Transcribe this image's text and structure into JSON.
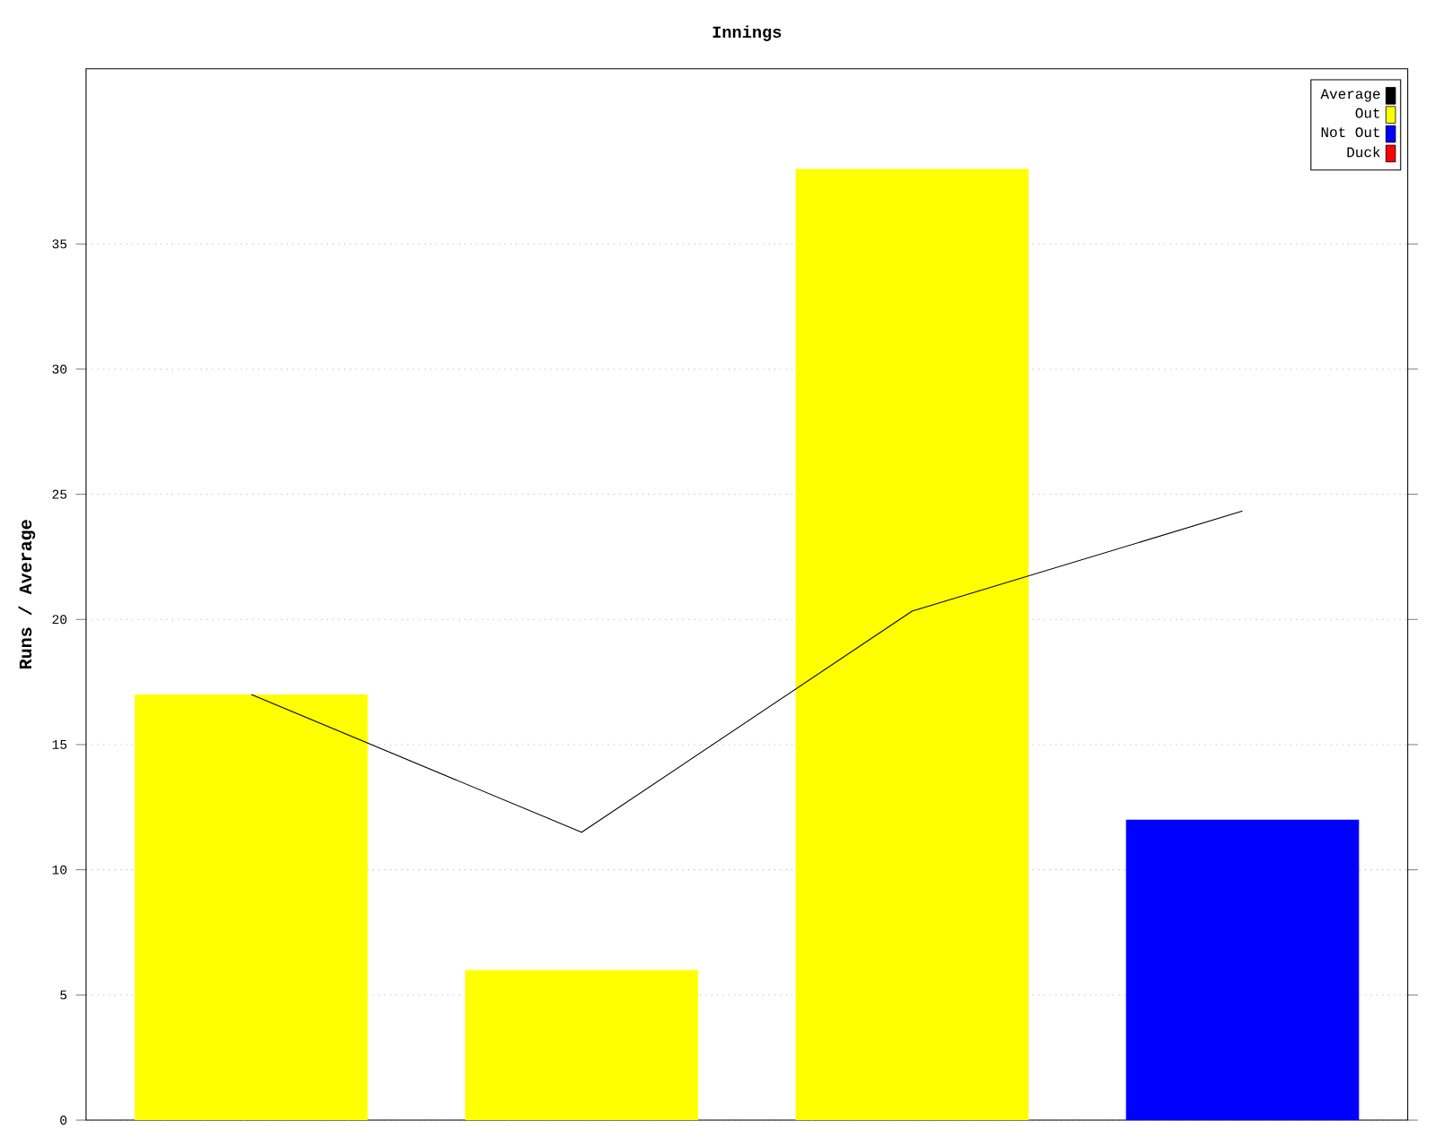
{
  "chart_data": {
    "type": "bar",
    "title": "Innings",
    "ylabel": "Runs / Average",
    "categories": [
      null,
      null,
      null,
      null
    ],
    "series": [
      {
        "name": "Average",
        "type": "line",
        "color": "#000000",
        "values": [
          17,
          11.5,
          20.33,
          24.33
        ]
      },
      {
        "name": "Out",
        "color": "#ffff00",
        "values": [
          17,
          6,
          38,
          null
        ]
      },
      {
        "name": "Not Out",
        "color": "#0000ff",
        "values": [
          null,
          null,
          null,
          12
        ]
      },
      {
        "name": "Duck",
        "color": "#ff0000",
        "values": [
          null,
          null,
          null,
          null
        ]
      }
    ],
    "ylim": [
      0,
      42
    ],
    "yticks": [
      0,
      5,
      10,
      15,
      20,
      25,
      30,
      35
    ],
    "grid": "y",
    "legend": "top right",
    "marker": "none"
  }
}
